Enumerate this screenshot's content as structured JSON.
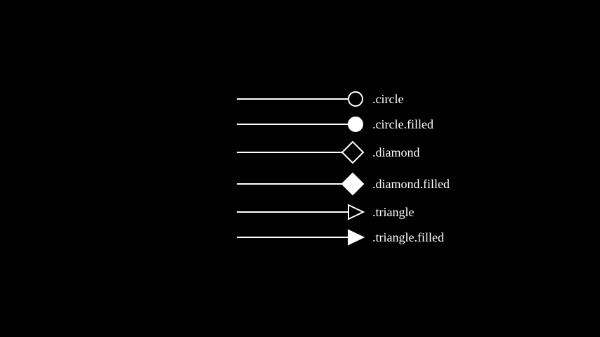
{
  "colors": {
    "background": "#000000",
    "foreground": "#ffffff"
  },
  "arrows": [
    {
      "label": ".circle",
      "shape": "circle",
      "filled": false
    },
    {
      "label": ".circle.filled",
      "shape": "circle",
      "filled": true
    },
    {
      "label": ".diamond",
      "shape": "diamond",
      "filled": false
    },
    {
      "label": ".diamond.filled",
      "shape": "diamond",
      "filled": true
    },
    {
      "label": ".triangle",
      "shape": "triangle",
      "filled": false
    },
    {
      "label": ".triangle.filled",
      "shape": "triangle",
      "filled": true
    }
  ]
}
